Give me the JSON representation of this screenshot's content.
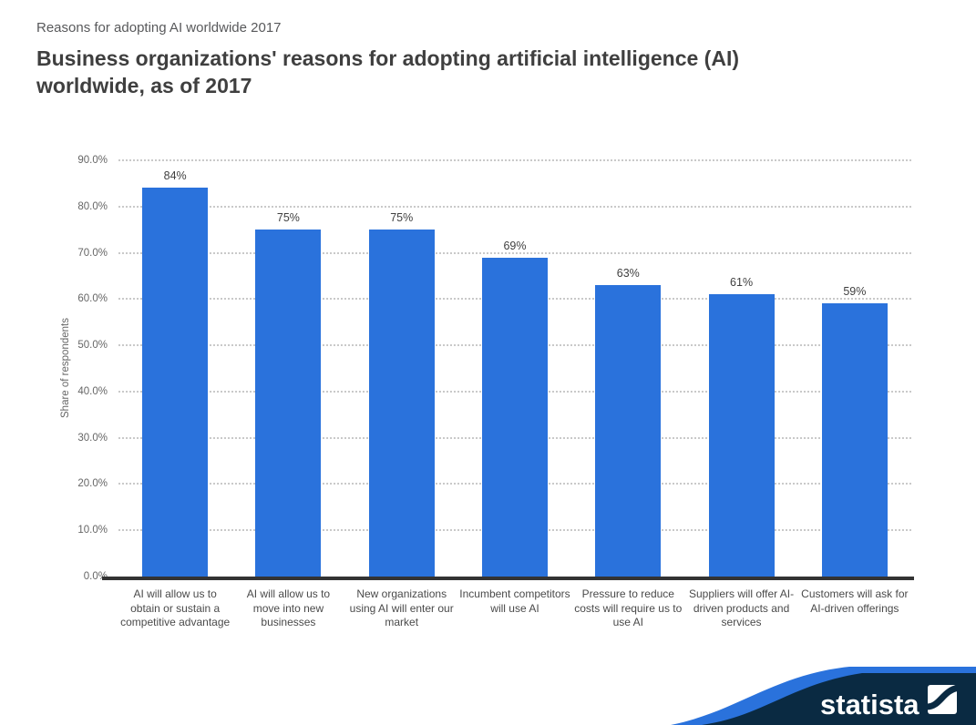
{
  "header": {
    "subtitle": "Reasons for adopting AI worldwide 2017",
    "title": "Business organizations' reasons for adopting artificial intelligence (AI)\nworldwide, as of 2017"
  },
  "chart_data": {
    "type": "bar",
    "title": "Business organizations' reasons for adopting artificial intelligence (AI) worldwide, as of 2017",
    "categories": [
      "AI will allow us to\nobtain or sustain a\ncompetitive advantage",
      "AI will allow us to\nmove into new\nbusinesses",
      "New organizations\nusing AI will enter our\nmarket",
      "Incumbent competitors\nwill use AI",
      "Pressure to reduce\ncosts will require us to\nuse AI",
      "Suppliers will offer AI-\ndriven products and\nservices",
      "Customers will ask for\nAI-driven offerings"
    ],
    "values": [
      84,
      75,
      75,
      69,
      63,
      61,
      59
    ],
    "value_labels": [
      "84%",
      "75%",
      "75%",
      "69%",
      "63%",
      "61%",
      "59%"
    ],
    "xlabel": "",
    "ylabel": "Share of respondents",
    "ylim": [
      0,
      90
    ],
    "yticks": [
      "0.0%",
      "10.0%",
      "20.0%",
      "30.0%",
      "40.0%",
      "50.0%",
      "60.0%",
      "70.0%",
      "80.0%",
      "90.0%"
    ],
    "grid": "horizontal-dotted",
    "legend": "none",
    "bar_color": "#2a72dc"
  },
  "colors": {
    "bar_blue": "#2a72dc",
    "logo_navy": "#0a2a42",
    "logo_stripe_blue": "#2a72dc",
    "logo_text": "#ffffff"
  },
  "footer": {
    "brand": "statista"
  }
}
